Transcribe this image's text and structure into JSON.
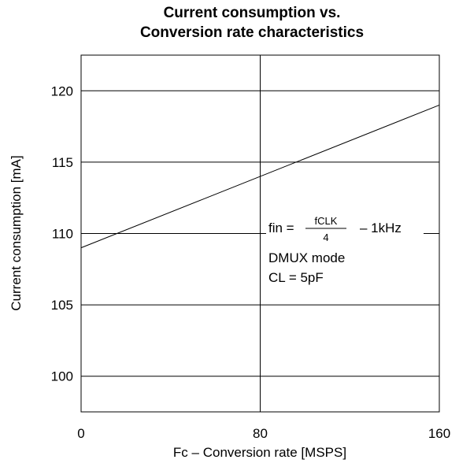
{
  "chart_data": {
    "type": "line",
    "title_line1": "Current consumption vs.",
    "title_line2": "Conversion rate characteristics",
    "xlabel": "Fc – Conversion rate  [MSPS]",
    "ylabel": "Current consumption [mA]",
    "xlim": [
      0,
      160
    ],
    "ylim": [
      97.5,
      122.5
    ],
    "x_ticks": [
      0,
      80,
      160
    ],
    "x_tick_labels": [
      "0",
      "80",
      "160"
    ],
    "y_ticks": [
      100,
      105,
      110,
      115,
      120
    ],
    "y_tick_labels": [
      "100",
      "105",
      "110",
      "115",
      "120"
    ],
    "grid": true,
    "grid_x": [
      80
    ],
    "grid_y": [
      100,
      105,
      110,
      115,
      120
    ],
    "series": [
      {
        "x": [
          0,
          160
        ],
        "y": [
          109,
          119
        ]
      }
    ],
    "annotation": {
      "fin_prefix": "fin =",
      "fraction_numerator": "fCLK",
      "fraction_denominator": "4",
      "fin_suffix": "– 1kHz",
      "line2": "DMUX mode",
      "line3": "CL = 5pF"
    }
  }
}
